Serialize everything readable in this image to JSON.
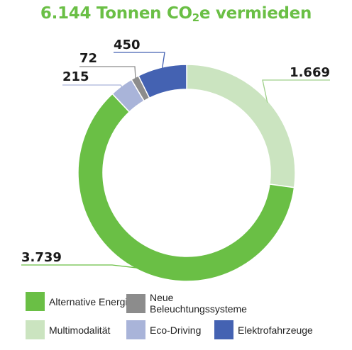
{
  "title": {
    "main": "6.144 Tonnen CO",
    "sub": "2",
    "rest": "e vermieden"
  },
  "chart_data": {
    "type": "pie",
    "variant": "donut",
    "title": "6.144 Tonnen CO2e vermieden",
    "total": 6144,
    "start_angle": "top (12 o'clock), clockwise",
    "slices": [
      {
        "name": "Multimodalität",
        "value": 1669,
        "label": "1.669",
        "color": "#cbe4c0"
      },
      {
        "name": "Alternative Energien",
        "value": 3739,
        "label": "3.739",
        "color": "#6abf45"
      },
      {
        "name": "Eco-Driving",
        "value": 215,
        "label": "215",
        "color": "#a9b4d9"
      },
      {
        "name": "Neue Beleuchtungssysteme",
        "value": 72,
        "label": "72",
        "color": "#8c8c8c"
      },
      {
        "name": "Elektrofahrzeuge",
        "value": 450,
        "label": "450",
        "color": "#4462b2"
      }
    ]
  },
  "legend": [
    {
      "name": "Alternative Energien",
      "color": "#6abf45"
    },
    {
      "name": "Neue Beleuchtungssysteme",
      "color": "#8c8c8c"
    },
    {
      "name": "Multimodalität",
      "color": "#cbe4c0"
    },
    {
      "name": "Eco-Driving",
      "color": "#a9b4d9"
    },
    {
      "name": "Elektrofahrzeuge",
      "color": "#4462b2"
    }
  ]
}
